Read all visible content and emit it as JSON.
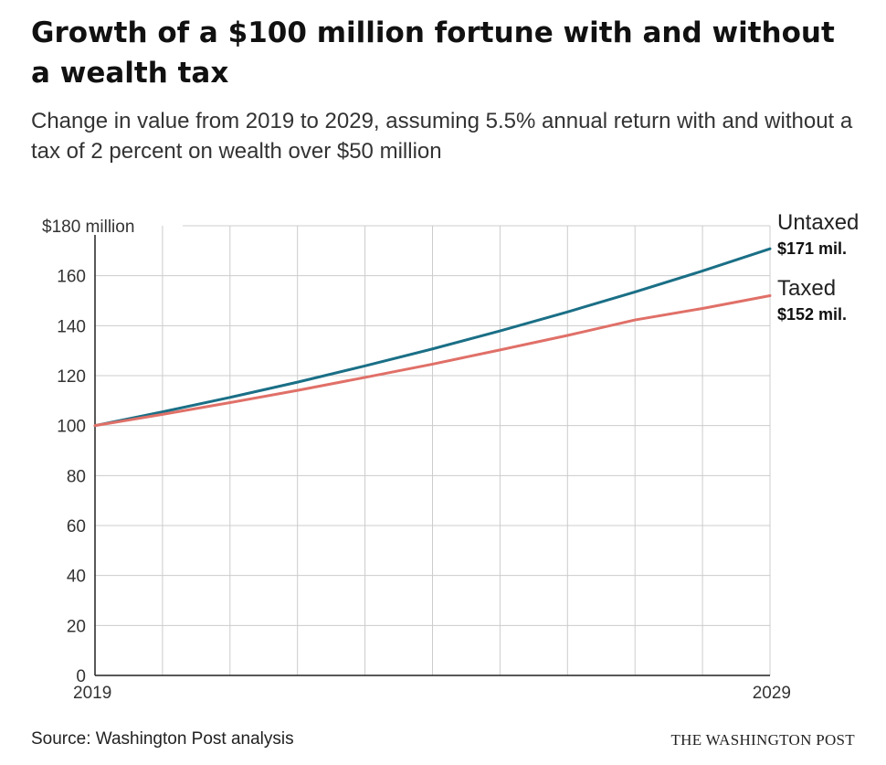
{
  "header": {
    "title": "Growth of a $100 million fortune with and without a wealth tax",
    "subtitle": "Change in value from 2019 to 2029, assuming 5.5% annual return with and without a tax of 2 percent on wealth over $50 million"
  },
  "footer": {
    "source": "Source: Washington Post analysis",
    "credit": "THE WASHINGTON POST"
  },
  "colors": {
    "untaxed": "#1a6f86",
    "taxed": "#e07068",
    "grid": "#cccccc",
    "axis": "#222222"
  },
  "chart_data": {
    "type": "line",
    "x": [
      2019,
      2020,
      2021,
      2022,
      2023,
      2024,
      2025,
      2026,
      2027,
      2028,
      2029
    ],
    "ylim": [
      0,
      180
    ],
    "yticks": [
      0,
      20,
      40,
      60,
      80,
      100,
      120,
      140,
      160,
      180
    ],
    "ytick_labels": [
      "0",
      "20",
      "40",
      "60",
      "80",
      "100",
      "120",
      "140",
      "160",
      "$180 million"
    ],
    "xtick_labels": [
      "2019",
      "2029"
    ],
    "grid": true,
    "series": [
      {
        "name": "Untaxed",
        "end_label": "$171 mil.",
        "values": [
          100,
          105.5,
          111.3,
          117.4,
          123.9,
          130.7,
          137.9,
          145.5,
          153.5,
          161.9,
          170.8
        ]
      },
      {
        "name": "Taxed",
        "end_label": "$152 mil.",
        "values": [
          100,
          104.5,
          109.2,
          114.1,
          119.3,
          124.6,
          130.3,
          136.1,
          142.3,
          146.9,
          152.0
        ]
      }
    ]
  }
}
